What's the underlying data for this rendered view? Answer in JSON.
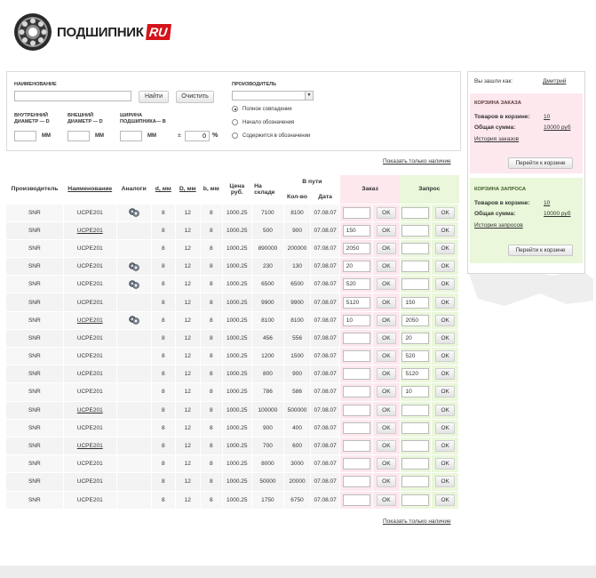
{
  "brand": {
    "logo_text": "ПОДШИПНИК",
    "logo_ru": "RU"
  },
  "search": {
    "name_label": "НАИМЕНОВАНИЕ",
    "name_value": "",
    "find_button": "Найти",
    "clear_button": "Очистить",
    "inner_label_1": "ВНУТРЕННИЙ",
    "inner_label_2": "ДИАМЕТР — d",
    "outer_label_1": "ВНЕШНИЙ",
    "outer_label_2": "ДИАМЕТР — D",
    "width_label_1": "ШИРИНА",
    "width_label_2": "ПОДШИПНИКА— b",
    "unit_mm": "ММ",
    "plusminus": "±",
    "tolerance_value": "0",
    "percent": "%",
    "manufacturer_label": "ПРОИЗВОДИТЕЛЬ",
    "manufacturer_value": "",
    "radio_full": "Полное совпадение",
    "radio_start": "Начало обозначения",
    "radio_contains": "Содержится в обозначении"
  },
  "links": {
    "show_available": "Показать только наличие"
  },
  "table": {
    "headers": {
      "manufacturer": "Производитель",
      "name": "Наименование",
      "analogs": "Аналоги",
      "d": "d, мм",
      "D": "D, мм",
      "b": "b, мм",
      "price_1": "Цена",
      "price_2": "руб.",
      "stock_1": "На",
      "stock_2": "складе",
      "transit": "В пути",
      "qty": "Кол-во",
      "date": "Дата",
      "order": "Заказ",
      "request": "Запрос"
    },
    "ok_label": "OK",
    "rows": [
      {
        "mfr": "SNR",
        "name": "UCPE201",
        "underline": false,
        "analog": true,
        "d": "8",
        "D": "12",
        "b": "8",
        "price": "1000.25",
        "stock": "7100",
        "qty": "8100",
        "date": "07.08.07",
        "order": "",
        "request": ""
      },
      {
        "mfr": "SNR",
        "name": "UCPE201",
        "underline": true,
        "analog": false,
        "d": "8",
        "D": "12",
        "b": "8",
        "price": "1000.25",
        "stock": "500",
        "qty": "900",
        "date": "07.08.07",
        "order": "150",
        "request": ""
      },
      {
        "mfr": "SNR",
        "name": "UCPE201",
        "underline": false,
        "analog": false,
        "d": "8",
        "D": "12",
        "b": "8",
        "price": "1000.25",
        "stock": "890000",
        "qty": "200000",
        "date": "07.08.07",
        "order": "2050",
        "request": ""
      },
      {
        "mfr": "SNR",
        "name": "UCPE201",
        "underline": false,
        "analog": true,
        "d": "8",
        "D": "12",
        "b": "8",
        "price": "1000.25",
        "stock": "230",
        "qty": "130",
        "date": "07.08.07",
        "order": "20",
        "request": ""
      },
      {
        "mfr": "SNR",
        "name": "UCPE201",
        "underline": false,
        "analog": true,
        "d": "8",
        "D": "12",
        "b": "8",
        "price": "1000.25",
        "stock": "6500",
        "qty": "6500",
        "date": "07.08.07",
        "order": "520",
        "request": ""
      },
      {
        "mfr": "SNR",
        "name": "UCPE201",
        "underline": false,
        "analog": false,
        "d": "8",
        "D": "12",
        "b": "8",
        "price": "1000.25",
        "stock": "9900",
        "qty": "9900",
        "date": "07.08.07",
        "order": "5120",
        "request": "150"
      },
      {
        "mfr": "SNR",
        "name": "UCPE201",
        "underline": true,
        "analog": true,
        "d": "8",
        "D": "12",
        "b": "8",
        "price": "1000.25",
        "stock": "8100",
        "qty": "8100",
        "date": "07.08.07",
        "order": "10",
        "request": "2050"
      },
      {
        "mfr": "SNR",
        "name": "UCPE201",
        "underline": false,
        "analog": false,
        "d": "8",
        "D": "12",
        "b": "8",
        "price": "1000.25",
        "stock": "456",
        "qty": "556",
        "date": "07.08.07",
        "order": "",
        "request": "20"
      },
      {
        "mfr": "SNR",
        "name": "UCPE201",
        "underline": false,
        "analog": false,
        "d": "8",
        "D": "12",
        "b": "8",
        "price": "1000.25",
        "stock": "1200",
        "qty": "1500",
        "date": "07.08.07",
        "order": "",
        "request": "520"
      },
      {
        "mfr": "SNR",
        "name": "UCPE201",
        "underline": false,
        "analog": false,
        "d": "8",
        "D": "12",
        "b": "8",
        "price": "1000.25",
        "stock": "800",
        "qty": "900",
        "date": "07.08.07",
        "order": "",
        "request": "5120"
      },
      {
        "mfr": "SNR",
        "name": "UCPE201",
        "underline": false,
        "analog": false,
        "d": "8",
        "D": "12",
        "b": "8",
        "price": "1000.25",
        "stock": "786",
        "qty": "586",
        "date": "07.08.07",
        "order": "",
        "request": "10"
      },
      {
        "mfr": "SNR",
        "name": "UCPE201",
        "underline": true,
        "analog": false,
        "d": "8",
        "D": "12",
        "b": "8",
        "price": "1000.25",
        "stock": "100000",
        "qty": "500000",
        "date": "07.08.07",
        "order": "",
        "request": ""
      },
      {
        "mfr": "SNR",
        "name": "UCPE201",
        "underline": false,
        "analog": false,
        "d": "8",
        "D": "12",
        "b": "8",
        "price": "1000.25",
        "stock": "900",
        "qty": "400",
        "date": "07.08.07",
        "order": "",
        "request": ""
      },
      {
        "mfr": "SNR",
        "name": "UCPE201",
        "underline": true,
        "analog": false,
        "d": "8",
        "D": "12",
        "b": "8",
        "price": "1000.25",
        "stock": "700",
        "qty": "600",
        "date": "07.08.07",
        "order": "",
        "request": ""
      },
      {
        "mfr": "SNR",
        "name": "UCPE201",
        "underline": false,
        "analog": false,
        "d": "8",
        "D": "12",
        "b": "8",
        "price": "1000.25",
        "stock": "8000",
        "qty": "3000",
        "date": "07.08.07",
        "order": "",
        "request": ""
      },
      {
        "mfr": "SNR",
        "name": "UCPE201",
        "underline": false,
        "analog": false,
        "d": "8",
        "D": "12",
        "b": "8",
        "price": "1000.25",
        "stock": "50000",
        "qty": "20000",
        "date": "07.08.07",
        "order": "",
        "request": ""
      },
      {
        "mfr": "SNR",
        "name": "UCPE201",
        "underline": false,
        "analog": false,
        "d": "8",
        "D": "12",
        "b": "8",
        "price": "1000.25",
        "stock": "1750",
        "qty": "6750",
        "date": "07.08.07",
        "order": "",
        "request": ""
      }
    ]
  },
  "sidebar": {
    "logged_as_label": "Вы зашли как:",
    "user_name": "Дмитрий",
    "order_cart": {
      "title": "КОРЗИНА ЗАКАЗА",
      "items_label": "Товаров в корзине:",
      "items_value": "10",
      "sum_label": "Общая сумма:",
      "sum_value": "10000 руб",
      "history_link": "История заказов",
      "button": "Перейти к корзине"
    },
    "request_cart": {
      "title": "КОРЗИНА ЗАПРОСА",
      "items_label": "Товаров в корзине:",
      "items_value": "10",
      "sum_label": "Общая сумма:",
      "sum_value": "10000 руб",
      "history_link": "История запросов",
      "button": "Перейти к корзине"
    }
  },
  "colors": {
    "order_bg": "#fde8ee",
    "request_bg": "#eaf7da",
    "logo_red": "#d4141a"
  }
}
